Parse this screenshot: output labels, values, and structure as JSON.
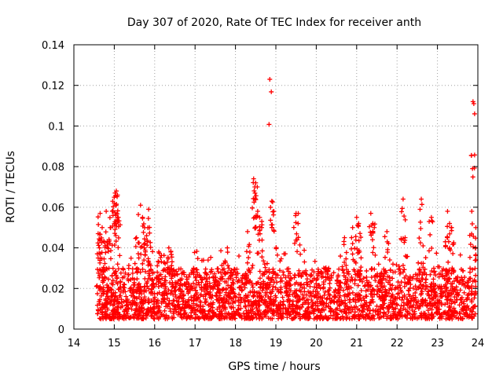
{
  "chart_data": {
    "type": "scatter",
    "title": "Day 307 of 2020, Rate Of TEC Index for receiver anth",
    "xlabel": "GPS time / hours",
    "ylabel": "ROTI / TECUs",
    "xlim": [
      14,
      24
    ],
    "ylim": [
      0,
      0.14
    ],
    "xticks": [
      "14",
      "15",
      "16",
      "17",
      "18",
      "19",
      "20",
      "21",
      "22",
      "23",
      "24"
    ],
    "yticks": [
      "0",
      "0.02",
      "0.04",
      "0.06",
      "0.08",
      "0.1",
      "0.12",
      "0.14"
    ],
    "grid": true,
    "marker": "+",
    "series_color": "#ff0000",
    "series": [
      {
        "name": "ROTI",
        "x_range": [
          14.55,
          23.95
        ],
        "y_baseline_range": [
          0.005,
          0.03
        ],
        "notable_points": [
          {
            "x": 14.6,
            "y": 0.047
          },
          {
            "x": 14.65,
            "y": 0.057
          },
          {
            "x": 14.7,
            "y": 0.05
          },
          {
            "x": 14.75,
            "y": 0.043
          },
          {
            "x": 14.8,
            "y": 0.058
          },
          {
            "x": 14.9,
            "y": 0.05
          },
          {
            "x": 14.95,
            "y": 0.058
          },
          {
            "x": 15.0,
            "y": 0.062
          },
          {
            "x": 15.02,
            "y": 0.067
          },
          {
            "x": 15.05,
            "y": 0.068
          },
          {
            "x": 15.08,
            "y": 0.066
          },
          {
            "x": 15.1,
            "y": 0.055
          },
          {
            "x": 15.55,
            "y": 0.045
          },
          {
            "x": 15.65,
            "y": 0.061
          },
          {
            "x": 15.7,
            "y": 0.055
          },
          {
            "x": 15.75,
            "y": 0.05
          },
          {
            "x": 15.8,
            "y": 0.046
          },
          {
            "x": 15.85,
            "y": 0.059
          },
          {
            "x": 16.1,
            "y": 0.038
          },
          {
            "x": 16.35,
            "y": 0.04
          },
          {
            "x": 16.4,
            "y": 0.038
          },
          {
            "x": 17.8,
            "y": 0.04
          },
          {
            "x": 18.3,
            "y": 0.048
          },
          {
            "x": 18.45,
            "y": 0.074
          },
          {
            "x": 18.48,
            "y": 0.07
          },
          {
            "x": 18.5,
            "y": 0.072
          },
          {
            "x": 18.55,
            "y": 0.058
          },
          {
            "x": 18.6,
            "y": 0.055
          },
          {
            "x": 18.65,
            "y": 0.05
          },
          {
            "x": 18.85,
            "y": 0.123
          },
          {
            "x": 18.9,
            "y": 0.063
          },
          {
            "x": 18.95,
            "y": 0.058
          },
          {
            "x": 19.5,
            "y": 0.057
          },
          {
            "x": 19.55,
            "y": 0.052
          },
          {
            "x": 20.7,
            "y": 0.045
          },
          {
            "x": 20.9,
            "y": 0.05
          },
          {
            "x": 21.0,
            "y": 0.055
          },
          {
            "x": 21.05,
            "y": 0.052
          },
          {
            "x": 21.35,
            "y": 0.057
          },
          {
            "x": 21.4,
            "y": 0.052
          },
          {
            "x": 21.75,
            "y": 0.048
          },
          {
            "x": 22.15,
            "y": 0.064
          },
          {
            "x": 22.2,
            "y": 0.045
          },
          {
            "x": 22.6,
            "y": 0.064
          },
          {
            "x": 22.85,
            "y": 0.055
          },
          {
            "x": 23.25,
            "y": 0.058
          },
          {
            "x": 23.3,
            "y": 0.052
          },
          {
            "x": 23.35,
            "y": 0.05
          },
          {
            "x": 23.85,
            "y": 0.058
          },
          {
            "x": 23.88,
            "y": 0.112
          },
          {
            "x": 23.9,
            "y": 0.111
          },
          {
            "x": 23.92,
            "y": 0.106
          },
          {
            "x": 23.95,
            "y": 0.05
          }
        ]
      }
    ]
  }
}
